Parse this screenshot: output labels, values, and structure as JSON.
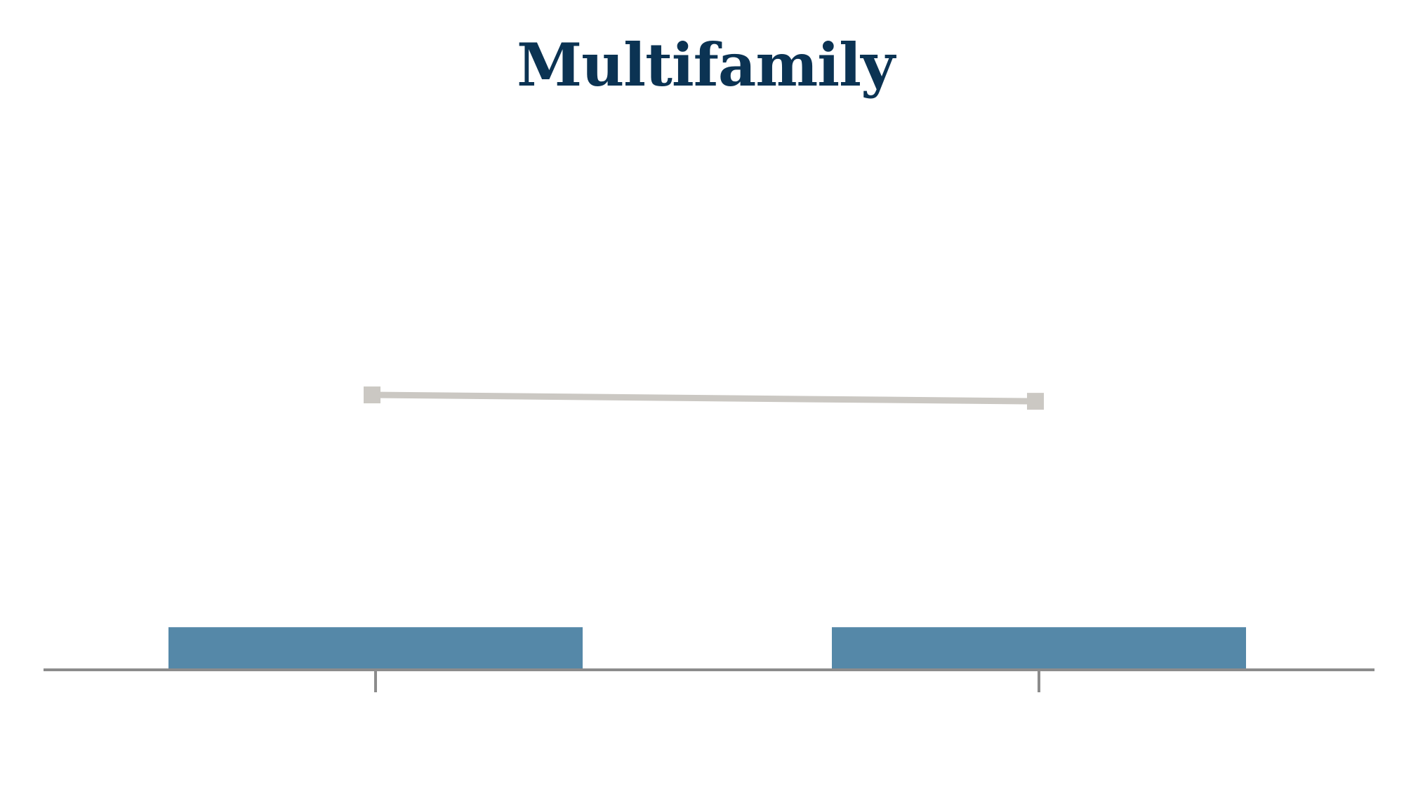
{
  "colors": {
    "title": "#0b3353",
    "bar": "#5588a8",
    "line": "#cbc8c3",
    "axis": "#8c8c8c",
    "background": "#ffffff"
  },
  "chart_data": {
    "type": "bar",
    "title": "Multifamily",
    "xlabel": "",
    "ylabel": "",
    "categories": [
      "",
      ""
    ],
    "series": [
      {
        "type": "bar",
        "values": [
          1.0,
          1.0
        ]
      },
      {
        "type": "line",
        "marker": "square",
        "values": [
          6.45,
          6.3
        ]
      }
    ],
    "ylim": [
      0,
      13
    ],
    "grid": false,
    "legend": "none"
  }
}
